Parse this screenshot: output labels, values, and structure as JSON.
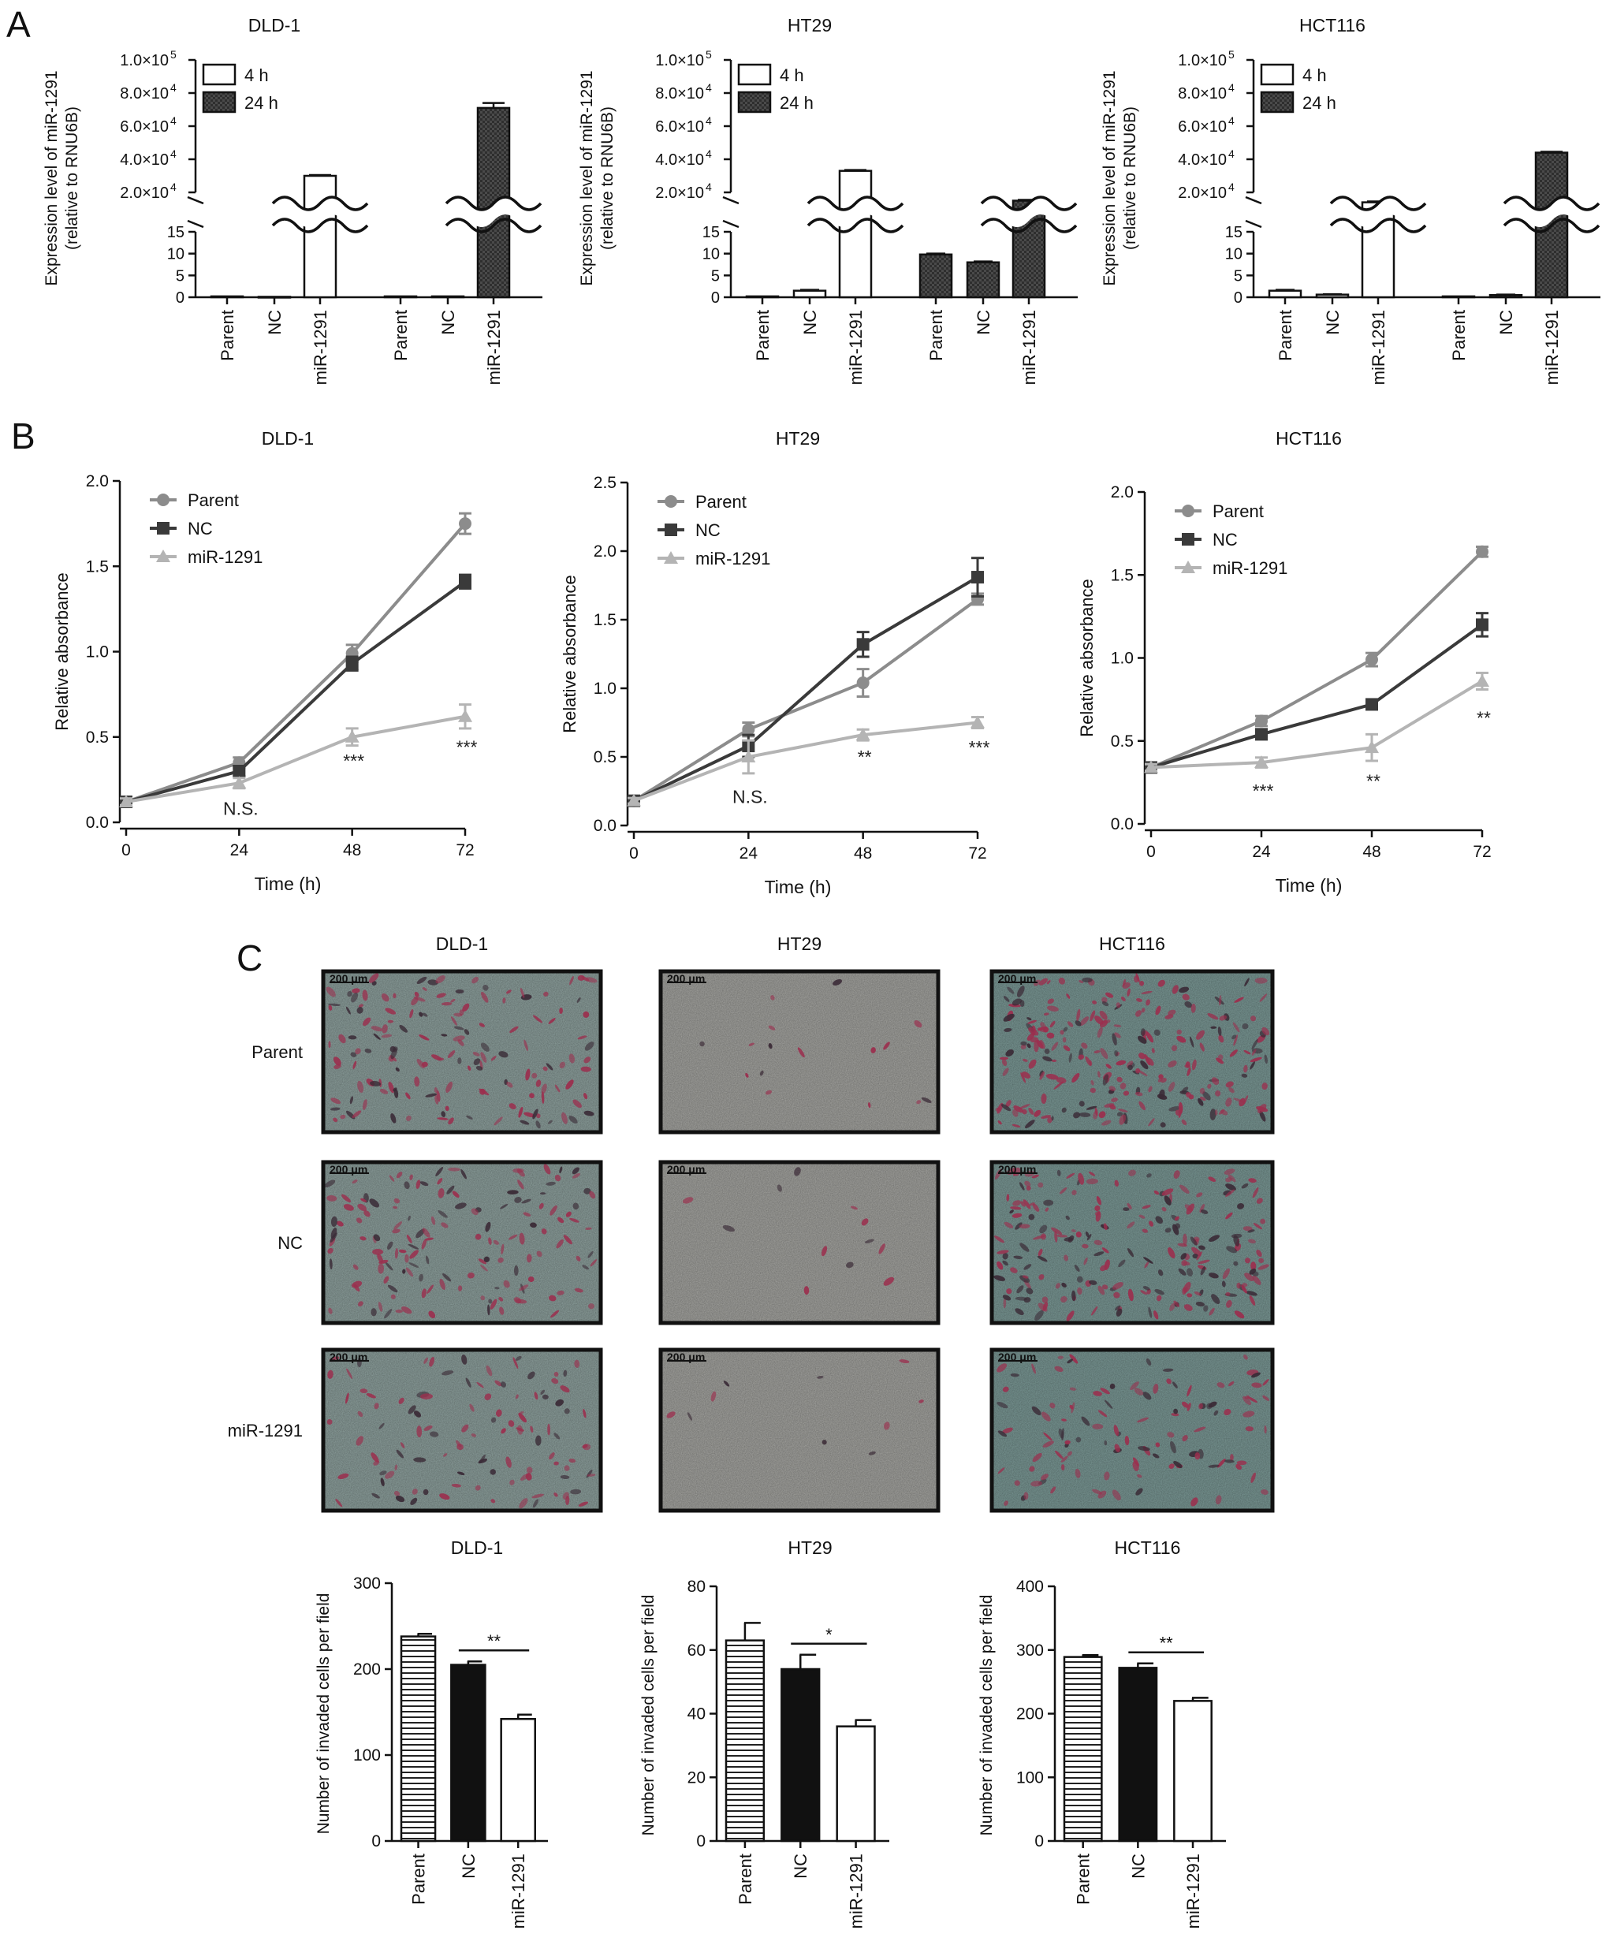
{
  "panel_letters": [
    "A",
    "B",
    "C"
  ],
  "panel_a": {
    "legend": [
      "4 h",
      "24 h"
    ],
    "ylabel_line1": "Expression level of miR-1291",
    "ylabel_line2": "(relative to RNU6B)",
    "upper_ticks": [
      "1.0×10",
      "8.0×10",
      "6.0×10",
      "4.0×10",
      "2.0×10"
    ],
    "upper_tick_exps": [
      "5",
      "4",
      "4",
      "4",
      "4"
    ],
    "lower_ticks": [
      "15",
      "10",
      "5",
      "0"
    ]
  },
  "panel_b": {
    "xlabel": "Time (h)",
    "ylabel": "Relative absorbance",
    "legend": [
      "Parent",
      "NC",
      "miR-1291"
    ]
  },
  "panel_c": {
    "column_titles": [
      "DLD-1",
      "HT29",
      "HCT116"
    ],
    "row_labels": [
      "Parent",
      "NC",
      "miR-1291"
    ],
    "scale_bar_label": "200 μm",
    "ylabel": "Number of invaded cells per field"
  },
  "colors": {
    "parent": "#8c8c8c",
    "nc": "#3a3a3a",
    "mir1291": "#b4b4b4",
    "bar_black": "#111111",
    "dark_bar": "#333333",
    "dld1_tint": "#8fa29f",
    "ht29_tint": "#a6a6a2",
    "hct116_tint": "#7c9a97",
    "stain": "#9b2f4e"
  },
  "chart_data": [
    {
      "type": "bar",
      "title": "DLD-1",
      "broken_axis": true,
      "categories": [
        "Parent",
        "NC",
        "miR-1291",
        "Parent",
        "NC",
        "miR-1291"
      ],
      "groups": [
        "4 h",
        "4 h",
        "4 h",
        "24 h",
        "24 h",
        "24 h"
      ],
      "values": [
        0.2,
        0.1,
        30000,
        0.2,
        0.2,
        71000
      ],
      "errors": [
        0,
        0,
        500,
        0,
        0,
        3000
      ],
      "lower_ylim": [
        0,
        15
      ],
      "upper_ylim": [
        20000,
        100000
      ]
    },
    {
      "type": "bar",
      "title": "HT29",
      "broken_axis": true,
      "categories": [
        "Parent",
        "NC",
        "miR-1291",
        "Parent",
        "NC",
        "miR-1291"
      ],
      "groups": [
        "4 h",
        "4 h",
        "4 h",
        "24 h",
        "24 h",
        "24 h"
      ],
      "values": [
        0.2,
        1.5,
        33000,
        9.8,
        8.0,
        15000
      ],
      "errors": [
        0,
        0.2,
        500,
        0.2,
        0.2,
        500
      ],
      "lower_ylim": [
        0,
        15
      ],
      "upper_ylim": [
        20000,
        100000
      ]
    },
    {
      "type": "bar",
      "title": "HCT116",
      "broken_axis": true,
      "categories": [
        "Parent",
        "NC",
        "miR-1291",
        "Parent",
        "NC",
        "miR-1291"
      ],
      "groups": [
        "4 h",
        "4 h",
        "4 h",
        "24 h",
        "24 h",
        "24 h"
      ],
      "values": [
        1.5,
        0.6,
        14000,
        0.2,
        0.5,
        44000
      ],
      "errors": [
        0.2,
        0.1,
        500,
        0,
        0.1,
        500
      ],
      "lower_ylim": [
        0,
        15
      ],
      "upper_ylim": [
        20000,
        100000
      ]
    },
    {
      "type": "line",
      "title": "DLD-1",
      "xlabel": "Time (h)",
      "ylabel": "Relative absorbance",
      "x": [
        0,
        24,
        48,
        72
      ],
      "ylim": [
        0,
        2.0
      ],
      "yticks": [
        "0.0",
        "0.5",
        "1.0",
        "1.5",
        "2.0"
      ],
      "series": [
        {
          "name": "Parent",
          "values": [
            0.12,
            0.35,
            0.99,
            1.75
          ],
          "errors": [
            0.02,
            0.03,
            0.05,
            0.06
          ]
        },
        {
          "name": "NC",
          "values": [
            0.12,
            0.3,
            0.93,
            1.41
          ],
          "errors": [
            0.02,
            0.03,
            0.04,
            0.04
          ]
        },
        {
          "name": "miR-1291",
          "values": [
            0.12,
            0.23,
            0.5,
            0.62
          ],
          "errors": [
            0.02,
            0.03,
            0.05,
            0.07
          ]
        }
      ],
      "annotations": [
        {
          "x": 24,
          "text": "N.S.",
          "y": 0.08
        },
        {
          "x": 48,
          "text": "***",
          "y": 0.36
        },
        {
          "x": 72,
          "text": "***",
          "y": 0.44
        }
      ]
    },
    {
      "type": "line",
      "title": "HT29",
      "xlabel": "Time (h)",
      "ylabel": "Relative absorbance",
      "x": [
        0,
        24,
        48,
        72
      ],
      "ylim": [
        0,
        2.5
      ],
      "yticks": [
        "0.0",
        "0.5",
        "1.0",
        "1.5",
        "2.0",
        "2.5"
      ],
      "series": [
        {
          "name": "Parent",
          "values": [
            0.18,
            0.7,
            1.04,
            1.65
          ],
          "errors": [
            0.02,
            0.05,
            0.1,
            0.04
          ]
        },
        {
          "name": "NC",
          "values": [
            0.18,
            0.58,
            1.32,
            1.81
          ],
          "errors": [
            0.02,
            0.08,
            0.09,
            0.14
          ]
        },
        {
          "name": "miR-1291",
          "values": [
            0.18,
            0.5,
            0.66,
            0.75
          ],
          "errors": [
            0.02,
            0.12,
            0.04,
            0.04
          ]
        }
      ],
      "annotations": [
        {
          "x": 24,
          "text": "N.S.",
          "y": 0.21
        },
        {
          "x": 48,
          "text": "**",
          "y": 0.5
        },
        {
          "x": 72,
          "text": "***",
          "y": 0.57
        }
      ]
    },
    {
      "type": "line",
      "title": "HCT116",
      "xlabel": "Time (h)",
      "ylabel": "Relative absorbance",
      "x": [
        0,
        24,
        48,
        72
      ],
      "ylim": [
        0,
        2.0
      ],
      "yticks": [
        "0.0",
        "0.5",
        "1.0",
        "1.5",
        "2.0"
      ],
      "series": [
        {
          "name": "Parent",
          "values": [
            0.34,
            0.62,
            0.99,
            1.64
          ],
          "errors": [
            0.02,
            0.03,
            0.04,
            0.03
          ]
        },
        {
          "name": "NC",
          "values": [
            0.34,
            0.54,
            0.72,
            1.2
          ],
          "errors": [
            0.02,
            0.03,
            0.02,
            0.07
          ]
        },
        {
          "name": "miR-1291",
          "values": [
            0.34,
            0.37,
            0.46,
            0.86
          ],
          "errors": [
            0.02,
            0.03,
            0.08,
            0.05
          ]
        }
      ],
      "annotations": [
        {
          "x": 24,
          "text": "***",
          "y": 0.2
        },
        {
          "x": 48,
          "text": "**",
          "y": 0.26
        },
        {
          "x": 72,
          "text": "**",
          "y": 0.64
        }
      ]
    },
    {
      "type": "bar",
      "title": "DLD-1",
      "ylabel": "Number of invaded cells per field",
      "categories": [
        "Parent",
        "NC",
        "miR-1291"
      ],
      "values": [
        238,
        205,
        142
      ],
      "errors": [
        3,
        4,
        5
      ],
      "ylim": [
        0,
        300
      ],
      "yticks": [
        "0",
        "100",
        "200",
        "300"
      ],
      "significance": "**"
    },
    {
      "type": "bar",
      "title": "HT29",
      "ylabel": "Number of invaded cells per field",
      "categories": [
        "Parent",
        "NC",
        "miR-1291"
      ],
      "values": [
        63,
        54,
        36
      ],
      "errors": [
        5.5,
        4.5,
        2.0
      ],
      "ylim": [
        0,
        80
      ],
      "yticks": [
        "0",
        "20",
        "40",
        "60",
        "80"
      ],
      "significance": "*"
    },
    {
      "type": "bar",
      "title": "HCT116",
      "ylabel": "Number of invaded cells per field",
      "categories": [
        "Parent",
        "NC",
        "miR-1291"
      ],
      "values": [
        289,
        272,
        220
      ],
      "errors": [
        3,
        7,
        5
      ],
      "ylim": [
        0,
        400
      ],
      "yticks": [
        "0",
        "100",
        "200",
        "300",
        "400"
      ],
      "significance": "**"
    }
  ]
}
